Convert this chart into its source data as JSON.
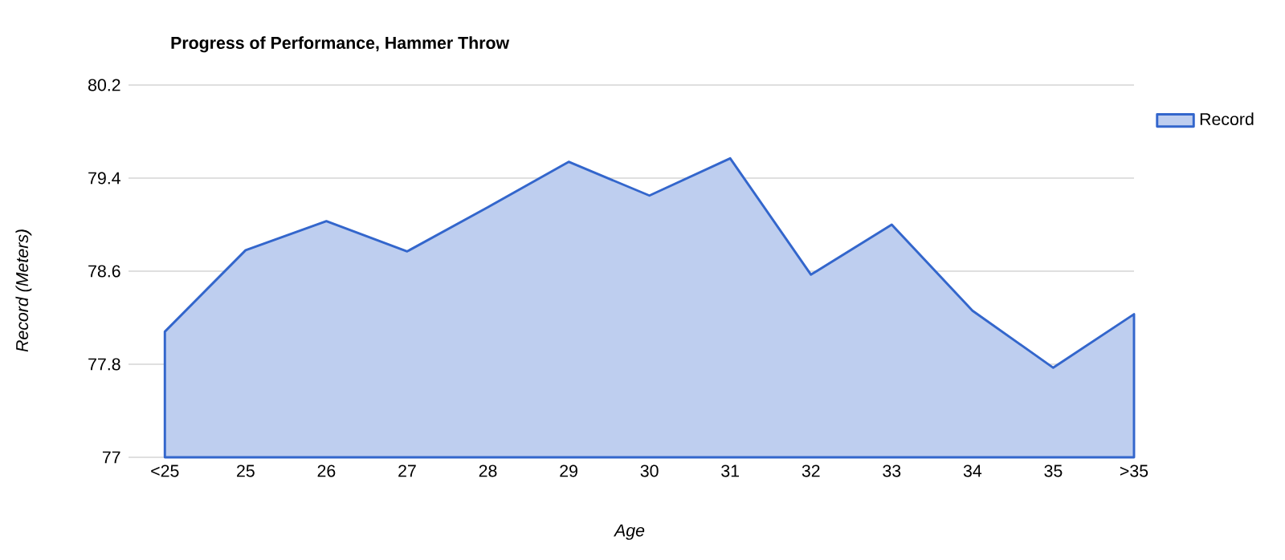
{
  "chart_data": {
    "type": "area",
    "title": "Progress of Performance, Hammer Throw",
    "xlabel": "Age",
    "ylabel": "Record (Meters)",
    "categories": [
      "<25",
      "25",
      "26",
      "27",
      "28",
      "29",
      "30",
      "31",
      "32",
      "33",
      "34",
      "35",
      ">35"
    ],
    "series": [
      {
        "name": "Record",
        "color": "#3366cc",
        "values": [
          78.08,
          78.78,
          79.03,
          78.77,
          79.15,
          79.54,
          79.25,
          79.57,
          78.57,
          79.0,
          78.26,
          77.77,
          78.23
        ]
      }
    ],
    "ylim": [
      77,
      80.2
    ],
    "yticks": [
      77,
      77.8,
      78.6,
      79.4,
      80.2
    ],
    "grid": "y",
    "legend": "top right"
  }
}
